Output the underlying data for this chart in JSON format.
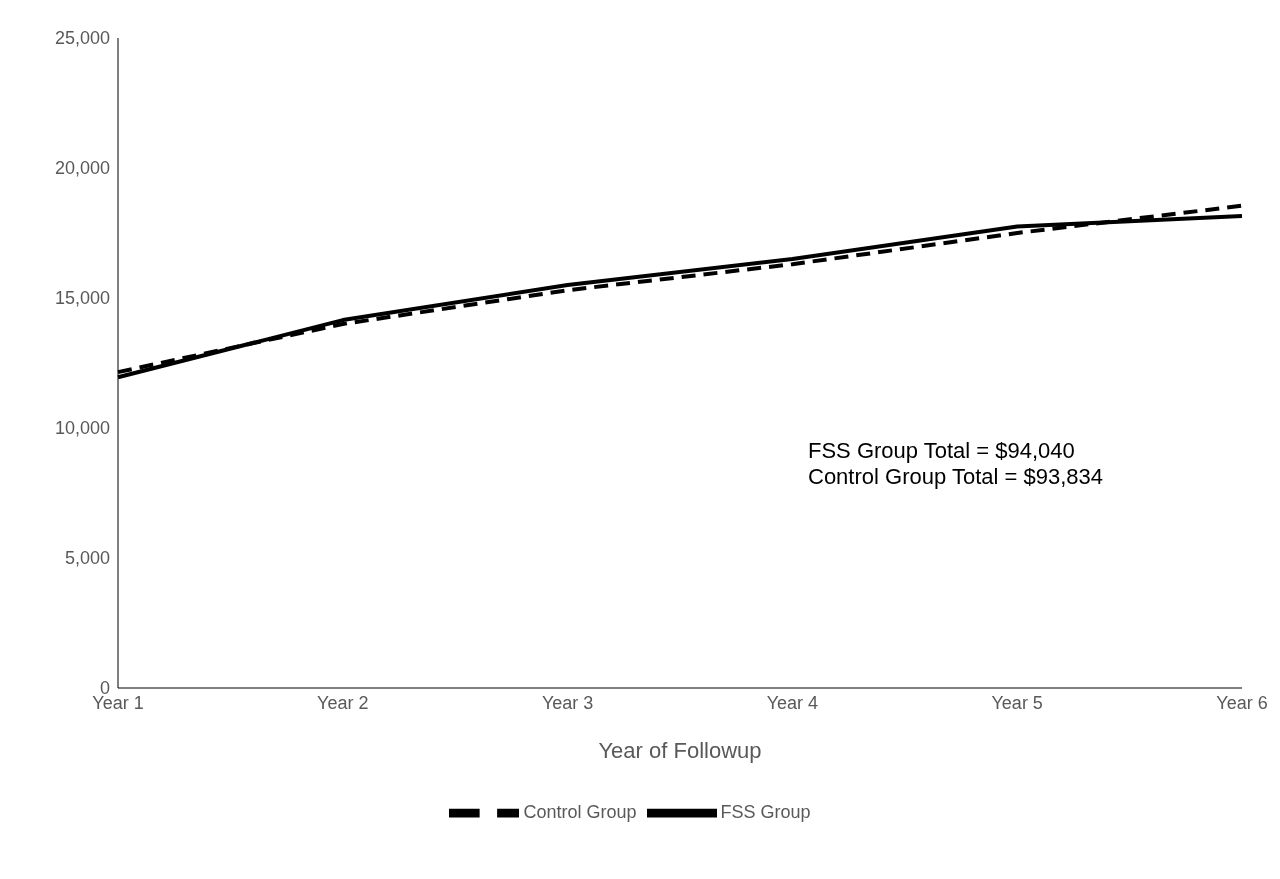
{
  "chart_data": {
    "type": "line",
    "xlabel": "Year of Followup",
    "categories": [
      "Year 1",
      "Year 2",
      "Year 3",
      "Year 4",
      "Year 5",
      "Year 6"
    ],
    "series": [
      {
        "name": "FSS Group",
        "color": "#000000",
        "line_style": "solid",
        "values": [
          11950,
          14150,
          15500,
          16500,
          17750,
          18150
        ]
      },
      {
        "name": "Control Group",
        "color": "#000000",
        "line_style": "dashed",
        "values": [
          12150,
          14000,
          15300,
          16300,
          17500,
          18550
        ]
      }
    ],
    "ylim": [
      0,
      25000
    ],
    "yticks": [
      {
        "value": 0,
        "label": "0"
      },
      {
        "value": 5000,
        "label": "5,000"
      },
      {
        "value": 10000,
        "label": "10,000"
      },
      {
        "value": 15000,
        "label": "15,000"
      },
      {
        "value": 20000,
        "label": "20,000"
      },
      {
        "value": 25000,
        "label": "25,000"
      }
    ],
    "grid": false,
    "legend": "bottom",
    "marker": "none",
    "annotations": [
      "FSS Group Total = $94,040",
      "Control Group Total = $93,834"
    ]
  }
}
